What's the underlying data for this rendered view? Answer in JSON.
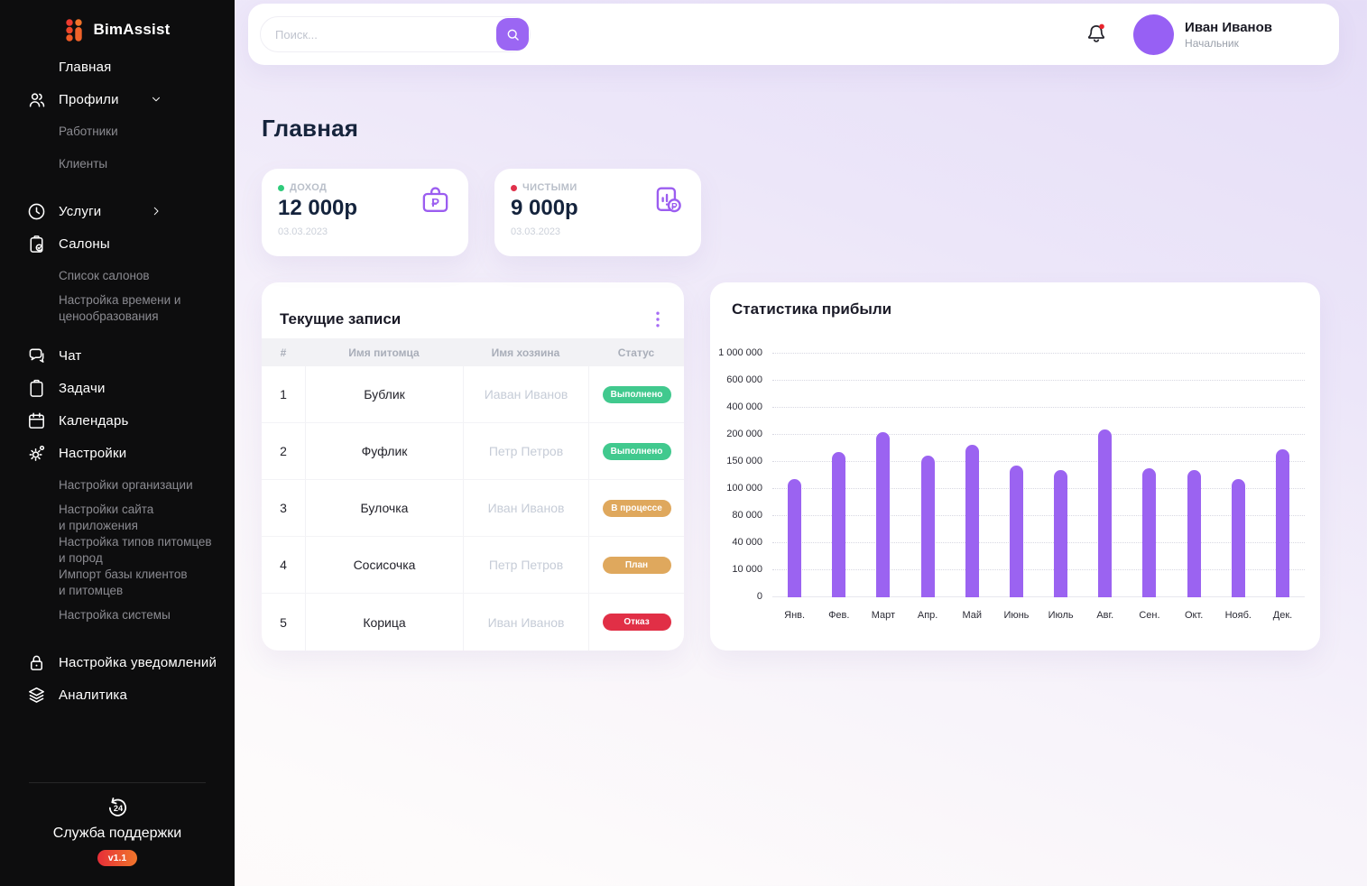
{
  "brand": {
    "name": "BimAssist"
  },
  "topbar": {
    "search_placeholder": "Поиск...",
    "user_name": "Иван Иванов",
    "user_role": "Начальник",
    "accent_color": "#9b66f3"
  },
  "page": {
    "title": "Главная"
  },
  "sidebar": {
    "sections": [
      {
        "items": [
          {
            "label": "Главная"
          },
          {
            "label": "Профили",
            "icon": "users-icon",
            "chevron": "down",
            "children": [
              "Работники",
              "Клиенты"
            ]
          }
        ]
      },
      {
        "items": [
          {
            "label": "Услуги",
            "icon": "clock-icon",
            "chevron": "right"
          },
          {
            "label": "Салоны",
            "icon": "clipboard-check-icon",
            "children": [
              "Список салонов",
              "Настройка времени и\nценообразования"
            ]
          }
        ]
      },
      {
        "items": [
          {
            "label": "Чат",
            "icon": "chat-icon"
          },
          {
            "label": "Задачи",
            "icon": "clipboard-icon"
          },
          {
            "label": "Календарь",
            "icon": "calendar-icon"
          },
          {
            "label": "Настройки",
            "icon": "gear-icon",
            "children": [
              "Настройки организации",
              "Настройки сайта\nи приложения",
              "Настройка типов питомцев\nи пород",
              "Импорт базы клиентов\nи питомцев",
              "Настройка системы"
            ]
          }
        ]
      },
      {
        "items": [
          {
            "label": "Настройка уведомлений",
            "icon": "lock-icon"
          },
          {
            "label": "Аналитика",
            "icon": "layers-icon"
          }
        ]
      }
    ],
    "support": {
      "label": "Служба поддержки",
      "version": "v1.1",
      "icon": "support-24-icon"
    }
  },
  "stat_cards": [
    {
      "label": "ДОХОД",
      "value": "12 000р",
      "date": "03.03.2023",
      "dot_color": "#2fcb7b",
      "icon": "briefcase-ruble-icon"
    },
    {
      "label": "ЧИСТЫМИ",
      "value": "9 000р",
      "date": "03.03.2023",
      "dot_color": "#e0314b",
      "icon": "report-ruble-icon"
    }
  ],
  "records": {
    "title": "Текущие записи",
    "columns": [
      "#",
      "Имя питомца",
      "Имя хозяина",
      "Статус"
    ],
    "rows": [
      {
        "num": "1",
        "pet": "Бублик",
        "owner": "Иаван Иванов",
        "status": "Выполнено",
        "status_type": "done"
      },
      {
        "num": "2",
        "pet": "Фуфлик",
        "owner": "Петр Петров",
        "status": "Выполнено",
        "status_type": "done"
      },
      {
        "num": "3",
        "pet": "Булочка",
        "owner": "Иван Иванов",
        "status": "В процессе",
        "status_type": "progress"
      },
      {
        "num": "4",
        "pet": "Сосисочка",
        "owner": "Петр Петров",
        "status": "План",
        "status_type": "plan"
      },
      {
        "num": "5",
        "pet": "Корица",
        "owner": "Иван Иванов",
        "status": "Отказ",
        "status_type": "rejected"
      }
    ],
    "status_colors": {
      "done": "#41c98e",
      "progress": "#dfa85d",
      "plan": "#dfa85d",
      "rejected": "#e12f46"
    }
  },
  "chart_data": {
    "type": "bar",
    "title": "Статистика прибыли",
    "categories": [
      "Янв.",
      "Фев.",
      "Март",
      "Апр.",
      "Май",
      "Июнь",
      "Июль",
      "Авг.",
      "Сен.",
      "Окт.",
      "Нояб.",
      "Дек."
    ],
    "values": [
      120000,
      168000,
      215000,
      162000,
      182000,
      143000,
      135000,
      220000,
      140000,
      135000,
      120000,
      172000
    ],
    "y_ticks": [
      "0",
      "10 000",
      "40 000",
      "80 000",
      "100 000",
      "150 000",
      "200 000",
      "400 000",
      "600 000",
      "1 000 000"
    ],
    "bar_height_pct": [
      48.5,
      59.6,
      67.8,
      58.1,
      62.6,
      54.1,
      52.2,
      68.9,
      53.0,
      52.2,
      48.5,
      60.7
    ],
    "bar_color": "#9b63f1",
    "xlabel": "",
    "ylabel": "",
    "grid": "dotted horizontal, ticks evenly spaced (non-linear value axis)",
    "legend": "none"
  }
}
